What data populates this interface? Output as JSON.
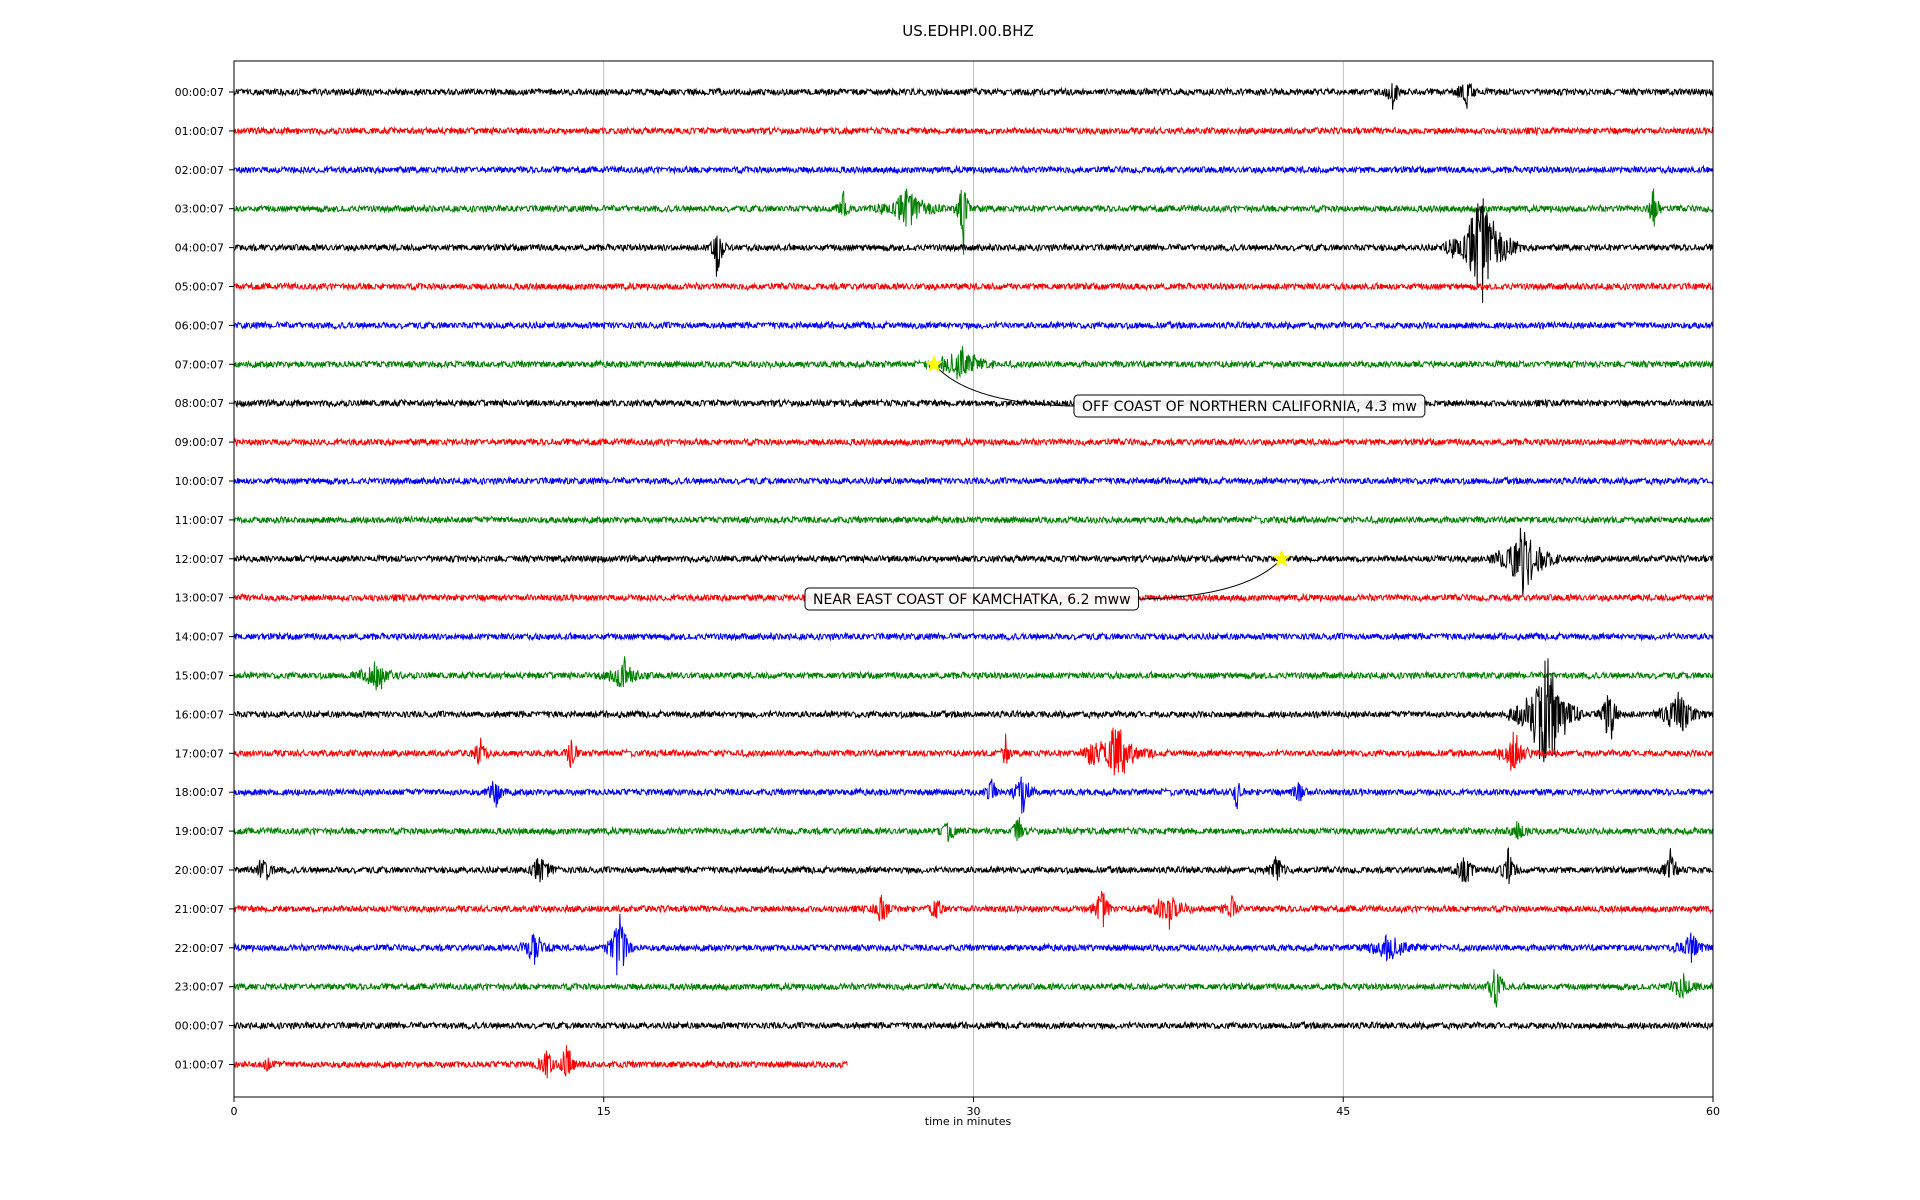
{
  "chart_data": {
    "type": "line",
    "title": "US.EDHPI.00.BHZ",
    "xlabel": "time in minutes",
    "ylabel": "",
    "xlim": [
      0,
      60
    ],
    "x_ticks": [
      "0",
      "15",
      "30",
      "45",
      "60"
    ],
    "x_tick_values": [
      0,
      15,
      30,
      45,
      60
    ],
    "grid": "vertical",
    "colors": [
      "#000000",
      "#ff0000",
      "#0000ff",
      "#008000"
    ],
    "rows": [
      {
        "label": "00:00:07",
        "color": "#000000",
        "end_minute": 60,
        "bursts": [
          {
            "t": 47,
            "amp": 0.35,
            "dur": 0.4
          },
          {
            "t": 50,
            "amp": 0.5,
            "dur": 0.5
          }
        ]
      },
      {
        "label": "01:00:07",
        "color": "#ff0000",
        "end_minute": 60,
        "bursts": []
      },
      {
        "label": "02:00:07",
        "color": "#0000ff",
        "end_minute": 60,
        "bursts": []
      },
      {
        "label": "03:00:07",
        "color": "#008000",
        "end_minute": 60,
        "bursts": [
          {
            "t": 24.7,
            "amp": 0.6,
            "dur": 0.3
          },
          {
            "t": 27.3,
            "amp": 0.5,
            "dur": 1.5
          },
          {
            "t": 29.6,
            "amp": 1.0,
            "dur": 0.4
          },
          {
            "t": 57.6,
            "amp": 0.7,
            "dur": 0.3
          }
        ]
      },
      {
        "label": "04:00:07",
        "color": "#000000",
        "end_minute": 60,
        "bursts": [
          {
            "t": 19.6,
            "amp": 0.9,
            "dur": 0.4
          },
          {
            "t": 50.6,
            "amp": 1.5,
            "dur": 1.6
          }
        ]
      },
      {
        "label": "05:00:07",
        "color": "#ff0000",
        "end_minute": 60,
        "bursts": []
      },
      {
        "label": "06:00:07",
        "color": "#0000ff",
        "end_minute": 60,
        "bursts": []
      },
      {
        "label": "07:00:07",
        "color": "#008000",
        "end_minute": 60,
        "bursts": [
          {
            "t": 29.5,
            "amp": 0.45,
            "dur": 1.5
          }
        ]
      },
      {
        "label": "08:00:07",
        "color": "#000000",
        "end_minute": 60,
        "bursts": []
      },
      {
        "label": "09:00:07",
        "color": "#ff0000",
        "end_minute": 60,
        "bursts": []
      },
      {
        "label": "10:00:07",
        "color": "#0000ff",
        "end_minute": 60,
        "bursts": []
      },
      {
        "label": "11:00:07",
        "color": "#008000",
        "end_minute": 60,
        "bursts": []
      },
      {
        "label": "12:00:07",
        "color": "#000000",
        "end_minute": 60,
        "bursts": [
          {
            "t": 52.3,
            "amp": 0.9,
            "dur": 1.5
          }
        ]
      },
      {
        "label": "13:00:07",
        "color": "#ff0000",
        "end_minute": 60,
        "bursts": []
      },
      {
        "label": "14:00:07",
        "color": "#0000ff",
        "end_minute": 60,
        "bursts": []
      },
      {
        "label": "15:00:07",
        "color": "#008000",
        "end_minute": 60,
        "bursts": [
          {
            "t": 5.8,
            "amp": 0.4,
            "dur": 1.0
          },
          {
            "t": 15.8,
            "amp": 0.4,
            "dur": 1.0
          }
        ]
      },
      {
        "label": "16:00:07",
        "color": "#000000",
        "end_minute": 60,
        "bursts": [
          {
            "t": 53.2,
            "amp": 1.8,
            "dur": 1.5
          },
          {
            "t": 55.8,
            "amp": 0.9,
            "dur": 0.5
          },
          {
            "t": 58.6,
            "amp": 0.6,
            "dur": 1.2
          }
        ]
      },
      {
        "label": "17:00:07",
        "color": "#ff0000",
        "end_minute": 60,
        "bursts": [
          {
            "t": 10,
            "amp": 0.3,
            "dur": 0.5
          },
          {
            "t": 13.7,
            "amp": 0.4,
            "dur": 0.4
          },
          {
            "t": 31.3,
            "amp": 0.4,
            "dur": 0.3
          },
          {
            "t": 34.8,
            "amp": 0.4,
            "dur": 0.6
          },
          {
            "t": 35.8,
            "amp": 0.7,
            "dur": 1.5
          },
          {
            "t": 51.9,
            "amp": 0.6,
            "dur": 0.8
          }
        ]
      },
      {
        "label": "18:00:07",
        "color": "#0000ff",
        "end_minute": 60,
        "bursts": [
          {
            "t": 10.6,
            "amp": 0.35,
            "dur": 0.5
          },
          {
            "t": 30.7,
            "amp": 0.6,
            "dur": 0.3
          },
          {
            "t": 32.0,
            "amp": 0.6,
            "dur": 0.5
          },
          {
            "t": 40.7,
            "amp": 0.5,
            "dur": 0.3
          },
          {
            "t": 43.2,
            "amp": 0.4,
            "dur": 0.4
          }
        ]
      },
      {
        "label": "19:00:07",
        "color": "#008000",
        "end_minute": 60,
        "bursts": [
          {
            "t": 29.0,
            "amp": 0.3,
            "dur": 0.5
          },
          {
            "t": 31.8,
            "amp": 0.6,
            "dur": 0.3
          },
          {
            "t": 52.1,
            "amp": 0.3,
            "dur": 0.5
          }
        ]
      },
      {
        "label": "20:00:07",
        "color": "#000000",
        "end_minute": 60,
        "bursts": [
          {
            "t": 1.2,
            "amp": 0.4,
            "dur": 0.5
          },
          {
            "t": 12.4,
            "amp": 0.35,
            "dur": 0.8
          },
          {
            "t": 42.3,
            "amp": 0.4,
            "dur": 0.5
          },
          {
            "t": 49.9,
            "amp": 0.45,
            "dur": 0.6
          },
          {
            "t": 51.7,
            "amp": 0.5,
            "dur": 0.5
          },
          {
            "t": 58.3,
            "amp": 0.5,
            "dur": 0.5
          }
        ]
      },
      {
        "label": "21:00:07",
        "color": "#ff0000",
        "end_minute": 60,
        "bursts": [
          {
            "t": 26.3,
            "amp": 0.5,
            "dur": 0.5
          },
          {
            "t": 28.5,
            "amp": 0.35,
            "dur": 0.4
          },
          {
            "t": 35.2,
            "amp": 0.6,
            "dur": 0.5
          },
          {
            "t": 37.9,
            "amp": 0.5,
            "dur": 1.0
          },
          {
            "t": 40.5,
            "amp": 0.35,
            "dur": 0.5
          }
        ]
      },
      {
        "label": "22:00:07",
        "color": "#0000ff",
        "end_minute": 60,
        "bursts": [
          {
            "t": 12.2,
            "amp": 0.35,
            "dur": 0.8
          },
          {
            "t": 15.6,
            "amp": 1.2,
            "dur": 0.6
          },
          {
            "t": 46.9,
            "amp": 0.3,
            "dur": 1.5
          },
          {
            "t": 59.1,
            "amp": 0.3,
            "dur": 1.0
          }
        ]
      },
      {
        "label": "23:00:07",
        "color": "#008000",
        "end_minute": 60,
        "bursts": [
          {
            "t": 51.2,
            "amp": 0.6,
            "dur": 0.5
          },
          {
            "t": 58.8,
            "amp": 0.35,
            "dur": 0.8
          }
        ]
      },
      {
        "label": "00:00:07",
        "color": "#000000",
        "end_minute": 60,
        "bursts": []
      },
      {
        "label": "01:00:07",
        "color": "#ff0000",
        "end_minute": 24.9,
        "bursts": [
          {
            "t": 1.4,
            "amp": 0.3,
            "dur": 0.3
          },
          {
            "t": 12.7,
            "amp": 0.5,
            "dur": 0.6
          },
          {
            "t": 13.5,
            "amp": 0.6,
            "dur": 0.5
          }
        ]
      }
    ],
    "events": [
      {
        "label": "OFF COAST OF NORTHERN CALIFORNIA, 4.3 mw",
        "row": 7,
        "minute": 28.4,
        "marker": "star",
        "marker_color": "#ffff00"
      },
      {
        "label": "NEAR EAST COAST OF KAMCHATKA, 6.2 mww",
        "row": 12,
        "minute": 42.5,
        "marker": "star",
        "marker_color": "#ffff00"
      }
    ]
  }
}
